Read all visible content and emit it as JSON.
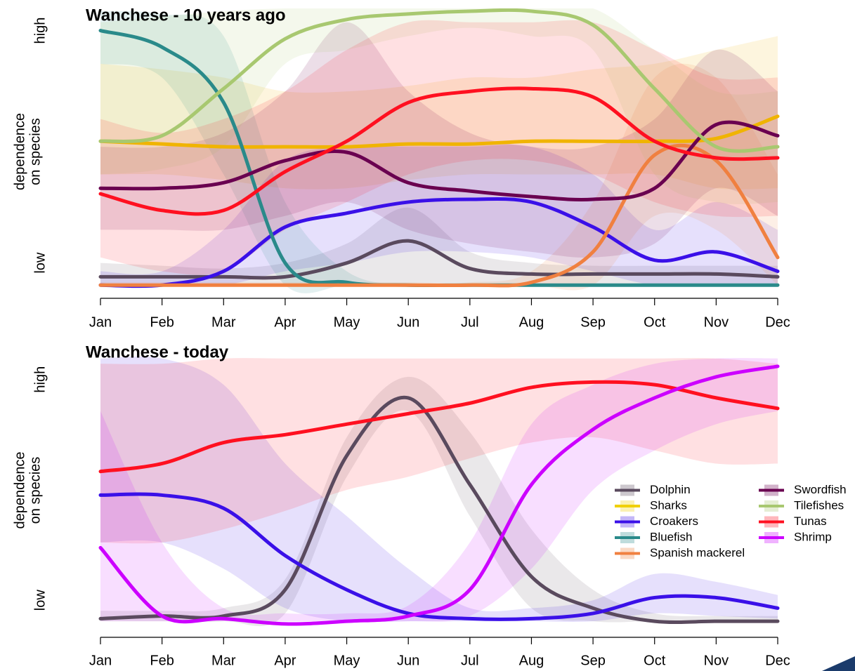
{
  "chart_data": [
    {
      "type": "line",
      "title": "Wanchese - 10 years ago",
      "ylabel": [
        "dependence",
        "on species"
      ],
      "categories": [
        "Jan",
        "Feb",
        "Mar",
        "Apr",
        "May",
        "Jun",
        "Jul",
        "Aug",
        "Sep",
        "Oct",
        "Nov",
        "Dec"
      ],
      "ylim": [
        -0.035,
        1.0
      ],
      "yticks": [
        {
          "value": 0.08,
          "label": "low"
        },
        {
          "value": 0.92,
          "label": "high"
        }
      ],
      "series": [
        {
          "color": "#5a4a5e",
          "values": [
            0.03,
            0.03,
            0.03,
            0.03,
            0.08,
            0.16,
            0.06,
            0.04,
            0.04,
            0.04,
            0.04,
            0.03
          ],
          "lower": [
            0,
            0,
            0,
            0,
            0,
            0,
            0,
            0,
            0,
            0,
            0,
            0
          ],
          "upper": [
            0.08,
            0.07,
            0.06,
            0.08,
            0.15,
            0.28,
            0.12,
            0.08,
            0.07,
            0.07,
            0.07,
            0.07
          ]
        },
        {
          "color": "#f0b400",
          "values": [
            0.52,
            0.51,
            0.5,
            0.5,
            0.5,
            0.51,
            0.51,
            0.52,
            0.52,
            0.52,
            0.53,
            0.61
          ],
          "lower": [
            0.4,
            0.4,
            0.38,
            0.35,
            0.35,
            0.38,
            0.4,
            0.4,
            0.4,
            0.4,
            0.35,
            0.35
          ],
          "upper": [
            0.8,
            0.78,
            0.75,
            0.7,
            0.7,
            0.72,
            0.75,
            0.75,
            0.78,
            0.8,
            0.85,
            0.9
          ]
        },
        {
          "color": "#3a10e8",
          "values": [
            0,
            0,
            0.05,
            0.21,
            0.26,
            0.3,
            0.31,
            0.3,
            0.21,
            0.09,
            0.12,
            0.05
          ],
          "lower": [
            0,
            0,
            0,
            0.05,
            0.08,
            0.12,
            0.12,
            0.1,
            0.05,
            0,
            0,
            0
          ],
          "upper": [
            0.05,
            0.05,
            0.2,
            0.45,
            0.5,
            0.5,
            0.5,
            0.5,
            0.4,
            0.2,
            0.3,
            0.2
          ]
        },
        {
          "color": "#2a8a8a",
          "values": [
            0.92,
            0.86,
            0.66,
            0.08,
            0.01,
            0,
            0,
            0,
            0,
            0,
            0,
            0
          ],
          "lower": [
            0.8,
            0.75,
            0.4,
            0,
            0,
            0,
            0,
            0,
            0,
            0,
            0,
            0
          ],
          "upper": [
            0.99,
            0.98,
            0.9,
            0.3,
            0.05,
            0,
            0,
            0,
            0,
            0,
            0,
            0
          ]
        },
        {
          "color": "#f08040",
          "values": [
            0,
            0,
            0,
            0,
            0,
            0,
            0,
            0.01,
            0.12,
            0.47,
            0.45,
            0.1
          ],
          "lower": [
            0,
            0,
            0,
            0,
            0,
            0,
            0,
            0,
            0,
            0.25,
            0.2,
            0
          ],
          "upper": [
            0.01,
            0.01,
            0.01,
            0.01,
            0.01,
            0.01,
            0.01,
            0.05,
            0.3,
            0.75,
            0.75,
            0.4
          ]
        },
        {
          "color": "#6a0050",
          "values": [
            0.35,
            0.35,
            0.37,
            0.45,
            0.48,
            0.37,
            0.34,
            0.32,
            0.31,
            0.35,
            0.58,
            0.54
          ],
          "lower": [
            0.2,
            0.2,
            0.2,
            0.25,
            0.3,
            0.2,
            0.15,
            0.12,
            0.1,
            0.15,
            0.35,
            0.25
          ],
          "upper": [
            0.5,
            0.5,
            0.55,
            0.7,
            0.95,
            0.7,
            0.55,
            0.5,
            0.5,
            0.6,
            0.85,
            0.7
          ]
        },
        {
          "color": "#a8c870",
          "values": [
            0.52,
            0.54,
            0.71,
            0.89,
            0.96,
            0.98,
            0.99,
            0.99,
            0.94,
            0.71,
            0.5,
            0.5
          ],
          "lower": [
            0.4,
            0.42,
            0.5,
            0.8,
            0.85,
            0.9,
            0.93,
            0.9,
            0.85,
            0.4,
            0.3,
            0.3
          ],
          "upper": [
            0.95,
            0.97,
            0.99,
            1,
            1,
            1,
            1,
            1,
            1,
            0.85,
            0.7,
            0.7
          ]
        },
        {
          "color": "#ff1020",
          "values": [
            0.33,
            0.27,
            0.27,
            0.41,
            0.52,
            0.66,
            0.7,
            0.71,
            0.68,
            0.52,
            0.46,
            0.46
          ],
          "lower": [
            0.1,
            0.05,
            0.05,
            0.2,
            0.3,
            0.4,
            0.45,
            0.45,
            0.4,
            0.3,
            0.25,
            0.25
          ],
          "upper": [
            0.6,
            0.55,
            0.6,
            0.7,
            0.85,
            0.95,
            0.95,
            0.95,
            0.95,
            0.85,
            0.75,
            0.75
          ]
        }
      ]
    },
    {
      "type": "line",
      "title": "Wanchese - today",
      "ylabel": [
        "dependence",
        "on species"
      ],
      "categories": [
        "Jan",
        "Feb",
        "Mar",
        "Apr",
        "May",
        "Jun",
        "Jul",
        "Aug",
        "Sep",
        "Oct",
        "Nov",
        "Dec"
      ],
      "ylim": [
        -0.053,
        1.05
      ],
      "yticks": [
        {
          "value": 0.08,
          "label": "low"
        },
        {
          "value": 0.92,
          "label": "high"
        }
      ],
      "legend": "right",
      "series": [
        {
          "name": "Dolphin",
          "color": "#5a4a5e",
          "values": [
            0.01,
            0.02,
            0.02,
            0.12,
            0.63,
            0.85,
            0.52,
            0.17,
            0.05,
            0,
            0,
            0
          ],
          "lower": [
            0,
            0,
            0,
            0.03,
            0.55,
            0.8,
            0.4,
            0.05,
            0,
            0,
            0,
            0
          ],
          "upper": [
            0.04,
            0.04,
            0.05,
            0.16,
            0.7,
            0.93,
            0.72,
            0.35,
            0.12,
            0.03,
            0.02,
            0.02
          ]
        },
        {
          "name": "Sharks",
          "color": "#f0d000",
          "values": [
            null,
            null,
            null,
            null,
            null,
            null,
            null,
            null,
            null,
            null,
            null,
            null
          ]
        },
        {
          "name": "Croakers",
          "color": "#3a10e8",
          "values": [
            0.48,
            0.48,
            0.43,
            0.25,
            0.12,
            0.03,
            0.01,
            0.01,
            0.03,
            0.09,
            0.09,
            0.05
          ],
          "lower": [
            0.3,
            0.3,
            0.2,
            0.05,
            0,
            0,
            0,
            0,
            0,
            0.03,
            0.02,
            0.01
          ],
          "upper": [
            1.0,
            1.0,
            0.9,
            0.6,
            0.4,
            0.2,
            0.05,
            0.05,
            0.08,
            0.18,
            0.15,
            0.1
          ]
        },
        {
          "name": "Bluefish",
          "color": "#2a8a8a",
          "values": [
            null,
            null,
            null,
            null,
            null,
            null,
            null,
            null,
            null,
            null,
            null,
            null
          ]
        },
        {
          "name": "Spanish mackerel",
          "color": "#f08040",
          "values": [
            null,
            null,
            null,
            null,
            null,
            null,
            null,
            null,
            null,
            null,
            null,
            null
          ]
        },
        {
          "name": "Swordfish",
          "color": "#6a0050",
          "values": [
            null,
            null,
            null,
            null,
            null,
            null,
            null,
            null,
            null,
            null,
            null,
            null
          ]
        },
        {
          "name": "Tilefishes",
          "color": "#a8c870",
          "values": [
            null,
            null,
            null,
            null,
            null,
            null,
            null,
            null,
            null,
            null,
            null,
            null
          ]
        },
        {
          "name": "Tunas",
          "color": "#ff1020",
          "values": [
            0.57,
            0.6,
            0.68,
            0.71,
            0.75,
            0.79,
            0.83,
            0.89,
            0.91,
            0.9,
            0.85,
            0.81
          ],
          "lower": [
            0.3,
            0.3,
            0.35,
            0.42,
            0.5,
            0.55,
            0.62,
            0.68,
            0.7,
            0.65,
            0.6,
            0.6
          ],
          "upper": [
            0.98,
            0.98,
            1.0,
            1.0,
            1.0,
            1.0,
            1.0,
            1.0,
            1.0,
            1.0,
            1.0,
            0.98
          ]
        },
        {
          "name": "Shrimp",
          "color": "#cc00ff",
          "values": [
            0.28,
            0.02,
            0.01,
            -0.01,
            0,
            0.02,
            0.12,
            0.52,
            0.73,
            0.85,
            0.93,
            0.97
          ],
          "lower": [
            0,
            0,
            0,
            0,
            0,
            0,
            0.02,
            0.2,
            0.5,
            0.65,
            0.75,
            0.8
          ],
          "upper": [
            0.8,
            0.3,
            0.05,
            0.03,
            0.03,
            0.06,
            0.3,
            0.75,
            0.9,
            0.98,
            1.0,
            1.0
          ]
        }
      ]
    }
  ]
}
